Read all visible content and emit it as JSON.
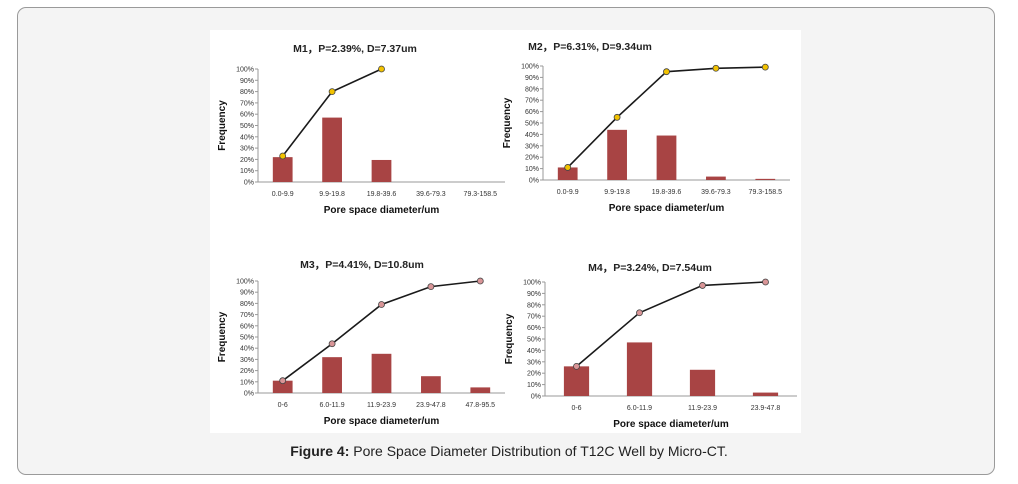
{
  "caption": {
    "label": "Figure 4:",
    "text": " Pore Space Diameter Distribution of T12C Well by Micro-CT."
  },
  "colors": {
    "bar": "#a84444",
    "line": "#1a1a1a",
    "marker_m1_m2": "#f2c200",
    "marker_m3_m4": "#d99597"
  },
  "chart_data": [
    {
      "type": "bar+line",
      "title": "M1，P=2.39%, D=7.37um",
      "xlabel": "Pore space diameter/um",
      "ylabel": "Frequency",
      "ylim": [
        0,
        100
      ],
      "yticks": [
        "0%",
        "10%",
        "20%",
        "30%",
        "40%",
        "50%",
        "60%",
        "70%",
        "80%",
        "90%",
        "100%"
      ],
      "categories": [
        "0.0-9.9",
        "9.9-19.8",
        "19.8-39.6",
        "39.6-79.3",
        "79.3-158.5"
      ],
      "bars": [
        22,
        57,
        19.5,
        0,
        0
      ],
      "cumulative": [
        23,
        80,
        100
      ],
      "marker": "yellow"
    },
    {
      "type": "bar+line",
      "title": "M2，P=6.31%, D=9.34um",
      "xlabel": "Pore space diameter/um",
      "ylabel": "Frequency",
      "ylim": [
        0,
        100
      ],
      "yticks": [
        "0%",
        "10%",
        "20%",
        "30%",
        "40%",
        "50%",
        "60%",
        "70%",
        "80%",
        "90%",
        "100%"
      ],
      "categories": [
        "0.0-9.9",
        "9.9-19.8",
        "19.8-39.6",
        "39.6-79.3",
        "79.3-158.5"
      ],
      "bars": [
        11,
        44,
        39,
        3,
        1
      ],
      "cumulative": [
        11,
        55,
        95,
        98,
        99
      ],
      "marker": "yellow"
    },
    {
      "type": "bar+line",
      "title": "M3，P=4.41%,  D=10.8um",
      "xlabel": "Pore space diameter/um",
      "ylabel": "Frequency",
      "ylim": [
        0,
        100
      ],
      "yticks": [
        "0%",
        "10%",
        "20%",
        "30%",
        "40%",
        "50%",
        "60%",
        "70%",
        "80%",
        "90%",
        "100%"
      ],
      "categories": [
        "0-6",
        "6.0-11.9",
        "11.9-23.9",
        "23.9-47.8",
        "47.8-95.5"
      ],
      "bars": [
        11,
        32,
        35,
        15,
        5
      ],
      "cumulative": [
        11,
        44,
        79,
        95,
        100
      ],
      "marker": "pink"
    },
    {
      "type": "bar+line",
      "title": "M4，P=3.24%,  D=7.54um",
      "xlabel": "Pore space diameter/um",
      "ylabel": "Frequency",
      "ylim": [
        0,
        100
      ],
      "yticks": [
        "0%",
        "10%",
        "20%",
        "30%",
        "40%",
        "50%",
        "60%",
        "70%",
        "80%",
        "90%",
        "100%"
      ],
      "categories": [
        "0-6",
        "6.0-11.9",
        "11.9-23.9",
        "23.9-47.8"
      ],
      "bars": [
        26,
        47,
        23,
        3
      ],
      "cumulative": [
        26,
        73,
        97,
        100
      ],
      "marker": "pink"
    }
  ]
}
